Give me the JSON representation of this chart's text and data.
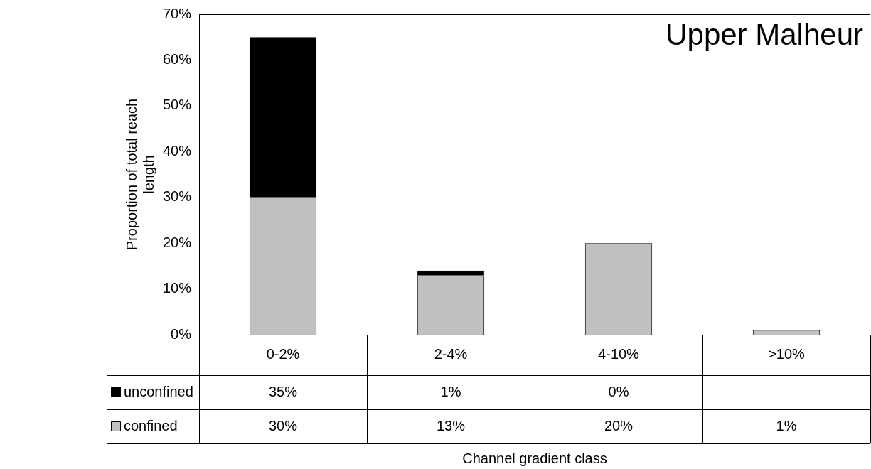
{
  "chart_data": {
    "type": "bar",
    "title": "Upper Malheur",
    "annotations": [
      "Channel gradient class"
    ],
    "ylabel": "Proportion of total reach length",
    "categories": [
      "0-2%",
      "2-4%",
      "4-10%",
      ">10%"
    ],
    "stacked": true,
    "series": [
      {
        "name": "confined",
        "color": "#c0c0c0",
        "values": [
          30,
          13,
          20,
          1
        ],
        "value_labels": [
          "30%",
          "13%",
          "20%",
          "1%"
        ]
      },
      {
        "name": "unconfined",
        "color": "#000000",
        "values": [
          35,
          1,
          0,
          null
        ],
        "value_labels": [
          "35%",
          "1%",
          "0%",
          null
        ]
      }
    ],
    "ylim": [
      0,
      70
    ],
    "yticks": [
      {
        "value": 0,
        "label": "0%"
      },
      {
        "value": 10,
        "label": "10%"
      },
      {
        "value": 20,
        "label": "20%"
      },
      {
        "value": 30,
        "label": "30%"
      },
      {
        "value": 40,
        "label": "40%"
      },
      {
        "value": 50,
        "label": "50%"
      },
      {
        "value": 60,
        "label": "60%"
      },
      {
        "value": 70,
        "label": "70%"
      }
    ],
    "grid": false,
    "legend": "bottom left",
    "data_labels": true
  }
}
